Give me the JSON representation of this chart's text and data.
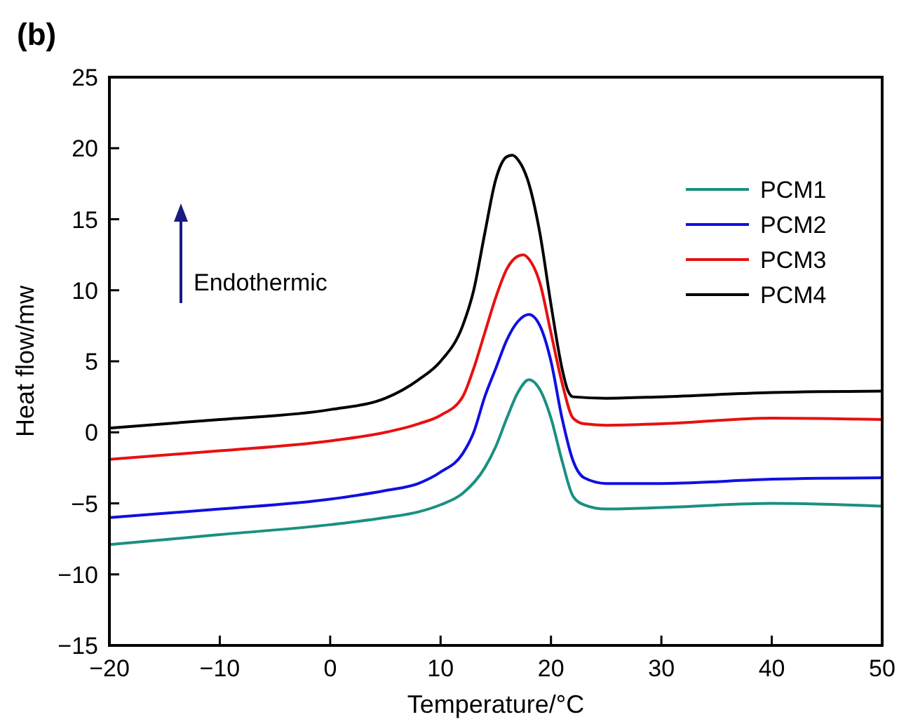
{
  "chart_data": {
    "type": "line",
    "title": "(b)",
    "xlabel": "Temperature/°C",
    "ylabel": "Heat flow/mw",
    "xlim": [
      -20,
      50
    ],
    "xticks": [
      {
        "value": -20,
        "label": "−20"
      },
      {
        "value": -10,
        "label": "−10"
      },
      0,
      10,
      20,
      30,
      40,
      50
    ],
    "ylim": [
      -15,
      25
    ],
    "yticks": [
      {
        "value": -15,
        "label": "−15"
      },
      {
        "value": -10,
        "label": "−10"
      },
      {
        "value": -5,
        "label": "−5"
      },
      0,
      5,
      10,
      15,
      20,
      25
    ],
    "grid": false,
    "legend": "top right",
    "marker": "none",
    "line_style": "solid",
    "annotations": [
      "Endothermic"
    ],
    "series": [
      {
        "name": "PCM1",
        "color": "#1a9080",
        "x": [
          -20,
          -10,
          0,
          5,
          8,
          10,
          12,
          14,
          15,
          16,
          17,
          18,
          19,
          20,
          21,
          22,
          23,
          25,
          30,
          40,
          50
        ],
        "values": [
          -7.9,
          -7.2,
          -6.5,
          -6.0,
          -5.6,
          -5.1,
          -4.3,
          -2.5,
          -1,
          1,
          2.8,
          3.7,
          3.0,
          1,
          -2.0,
          -4.5,
          -5.1,
          -5.4,
          -5.3,
          -5.0,
          -5.2
        ]
      },
      {
        "name": "PCM2",
        "color": "#1010e0",
        "x": [
          -20,
          -10,
          0,
          5,
          8,
          10,
          12,
          13,
          14,
          15,
          16,
          17,
          18,
          19,
          20,
          21,
          22,
          23,
          25,
          30,
          40,
          50
        ],
        "values": [
          -6.0,
          -5.4,
          -4.7,
          -4.1,
          -3.6,
          -2.8,
          -1.5,
          0,
          2.5,
          4.5,
          6.5,
          7.8,
          8.3,
          7.5,
          5,
          1.0,
          -2.0,
          -3.2,
          -3.6,
          -3.6,
          -3.3,
          -3.2
        ]
      },
      {
        "name": "PCM3",
        "color": "#e81010",
        "x": [
          -20,
          -10,
          0,
          5,
          8,
          10,
          12,
          13,
          14,
          15,
          16,
          17,
          17.5,
          18,
          19,
          20,
          21,
          22,
          23,
          25,
          30,
          40,
          50
        ],
        "values": [
          -1.9,
          -1.3,
          -0.6,
          0,
          0.6,
          1.2,
          2.5,
          4.5,
          7,
          9.5,
          11.5,
          12.4,
          12.5,
          12.2,
          10.5,
          7,
          3.5,
          1.0,
          0.6,
          0.5,
          0.6,
          1.0,
          0.9
        ]
      },
      {
        "name": "PCM4",
        "color": "#000000",
        "x": [
          -20,
          -10,
          0,
          5,
          8,
          10,
          12,
          13,
          14,
          15,
          16,
          16.5,
          17,
          18,
          19,
          20,
          21,
          21.5,
          22,
          25,
          30,
          40,
          50
        ],
        "values": [
          0.3,
          0.9,
          1.6,
          2.4,
          3.7,
          5.0,
          7.5,
          10,
          14,
          17.8,
          19.4,
          19.5,
          19.2,
          17.5,
          14,
          9,
          4.5,
          3.0,
          2.5,
          2.4,
          2.5,
          2.8,
          2.9
        ]
      }
    ]
  }
}
